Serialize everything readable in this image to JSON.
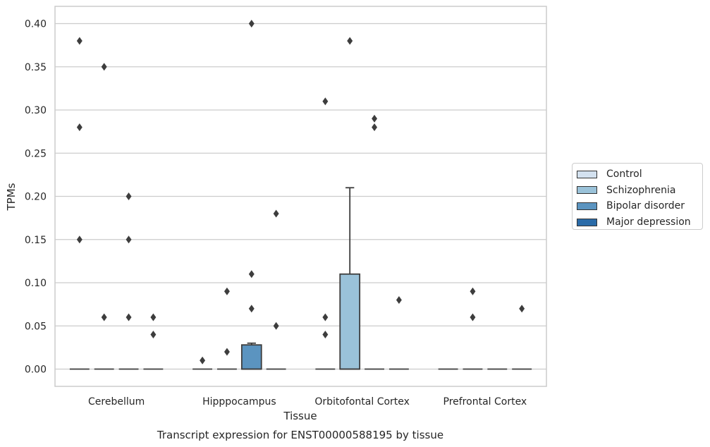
{
  "chart_data": {
    "type": "box",
    "title": "Transcript expression for ENST00000588195 by tissue",
    "xlabel": "Tissue",
    "ylabel": "TPMs",
    "ylim": [
      -0.02,
      0.42
    ],
    "yticks": [
      "0.00",
      "0.05",
      "0.10",
      "0.15",
      "0.20",
      "0.25",
      "0.30",
      "0.35",
      "0.40"
    ],
    "grid": true,
    "legend_position": "right",
    "categories": [
      "Cerebellum",
      "Hipppocampus",
      "Orbitofontal Cortex",
      "Prefrontal Cortex"
    ],
    "series": [
      {
        "name": "Control",
        "color": "#d3e1ef",
        "boxes": [
          {
            "q1": 0,
            "median": 0,
            "q3": 0,
            "whisker_low": 0,
            "whisker_high": 0,
            "outliers": [
              0.38,
              0.28,
              0.15
            ]
          },
          {
            "q1": 0,
            "median": 0,
            "q3": 0,
            "whisker_low": 0,
            "whisker_high": 0,
            "outliers": [
              0.01
            ]
          },
          {
            "q1": 0,
            "median": 0,
            "q3": 0,
            "whisker_low": 0,
            "whisker_high": 0,
            "outliers": [
              0.31,
              0.06,
              0.04
            ]
          },
          {
            "q1": 0,
            "median": 0,
            "q3": 0,
            "whisker_low": 0,
            "whisker_high": 0,
            "outliers": []
          }
        ]
      },
      {
        "name": "Schizophrenia",
        "color": "#9ac2d9",
        "boxes": [
          {
            "q1": 0,
            "median": 0,
            "q3": 0,
            "whisker_low": 0,
            "whisker_high": 0,
            "outliers": [
              0.35,
              0.06
            ]
          },
          {
            "q1": 0,
            "median": 0,
            "q3": 0,
            "whisker_low": 0,
            "whisker_high": 0,
            "outliers": [
              0.09,
              0.02
            ]
          },
          {
            "q1": 0,
            "median": 0,
            "q3": 0.11,
            "whisker_low": 0,
            "whisker_high": 0.21,
            "outliers": [
              0.38
            ]
          },
          {
            "q1": 0,
            "median": 0,
            "q3": 0,
            "whisker_low": 0,
            "whisker_high": 0,
            "outliers": [
              0.09,
              0.06
            ]
          }
        ]
      },
      {
        "name": "Bipolar disorder",
        "color": "#5b94c0",
        "boxes": [
          {
            "q1": 0,
            "median": 0,
            "q3": 0,
            "whisker_low": 0,
            "whisker_high": 0,
            "outliers": [
              0.2,
              0.15,
              0.06
            ]
          },
          {
            "q1": 0,
            "median": 0,
            "q3": 0.028,
            "whisker_low": 0,
            "whisker_high": 0.03,
            "outliers": [
              0.4,
              0.11,
              0.07
            ]
          },
          {
            "q1": 0,
            "median": 0,
            "q3": 0,
            "whisker_low": 0,
            "whisker_high": 0,
            "outliers": [
              0.29,
              0.28
            ]
          },
          {
            "q1": 0,
            "median": 0,
            "q3": 0,
            "whisker_low": 0,
            "whisker_high": 0,
            "outliers": []
          }
        ]
      },
      {
        "name": "Major depression",
        "color": "#2a6ba8",
        "boxes": [
          {
            "q1": 0,
            "median": 0,
            "q3": 0,
            "whisker_low": 0,
            "whisker_high": 0,
            "outliers": [
              0.06,
              0.04
            ]
          },
          {
            "q1": 0,
            "median": 0,
            "q3": 0,
            "whisker_low": 0,
            "whisker_high": 0,
            "outliers": [
              0.18,
              0.05
            ]
          },
          {
            "q1": 0,
            "median": 0,
            "q3": 0,
            "whisker_low": 0,
            "whisker_high": 0,
            "outliers": [
              0.08
            ]
          },
          {
            "q1": 0,
            "median": 0,
            "q3": 0,
            "whisker_low": 0,
            "whisker_high": 0,
            "outliers": [
              0.07
            ]
          }
        ]
      }
    ]
  }
}
